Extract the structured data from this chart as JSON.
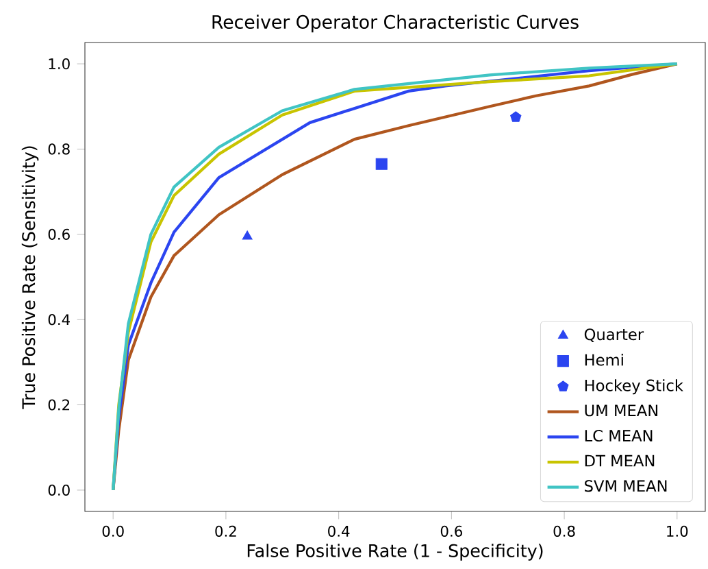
{
  "chart_data": {
    "type": "line",
    "title": "Receiver Operator Characteristic Curves",
    "xlabel": "False Positive Rate (1 - Specificity)",
    "ylabel": "True Positive Rate (Sensitivity)",
    "xlim": [
      -0.05,
      1.05
    ],
    "ylim": [
      -0.05,
      1.05
    ],
    "xticks": [
      {
        "value": 0,
        "label": "0.0"
      },
      0.2,
      0.4,
      0.6,
      0.8,
      {
        "value": 1,
        "label": "1.0"
      }
    ],
    "yticks": [
      {
        "value": 0,
        "label": "0.0"
      },
      0.2,
      0.4,
      0.6,
      0.8,
      {
        "value": 1,
        "label": "1.0"
      }
    ],
    "grid": false,
    "legend": "bottom right",
    "series": [
      {
        "name": "Quarter",
        "type": "scatter",
        "marker": "triangle",
        "color": "#2b45f0",
        "x": [
          0.238
        ],
        "values": [
          0.595
        ]
      },
      {
        "name": "Hemi",
        "type": "scatter",
        "marker": "square",
        "color": "#2b45f0",
        "x": [
          0.476
        ],
        "values": [
          0.765
        ]
      },
      {
        "name": "Hockey Stick",
        "type": "scatter",
        "color": "#2b45f0",
        "x": [
          0.714
        ],
        "values": [
          0.875
        ]
      },
      {
        "name": "UM MEAN",
        "color": "#b0561e",
        "x": [
          0.0,
          0.01,
          0.027,
          0.067,
          0.108,
          0.1875,
          0.3,
          0.428,
          0.524,
          0.668,
          0.75,
          0.844,
          0.92,
          1.0
        ],
        "values": [
          0.0,
          0.14,
          0.305,
          0.453,
          0.55,
          0.646,
          0.74,
          0.823,
          0.855,
          0.9,
          0.925,
          0.948,
          0.975,
          1.0
        ]
      },
      {
        "name": "LC MEAN",
        "color": "#2b45f0",
        "x": [
          0.0,
          0.01,
          0.027,
          0.067,
          0.108,
          0.1875,
          0.349,
          0.524,
          0.589,
          0.844,
          1.0
        ],
        "values": [
          0.0,
          0.17,
          0.34,
          0.486,
          0.605,
          0.733,
          0.862,
          0.936,
          0.948,
          0.984,
          1.0
        ]
      },
      {
        "name": "DT MEAN",
        "color": "#c8c400",
        "x": [
          0.0,
          0.01,
          0.027,
          0.067,
          0.108,
          0.1875,
          0.3,
          0.428,
          0.668,
          0.844,
          1.0
        ],
        "values": [
          0.0,
          0.2,
          0.37,
          0.582,
          0.691,
          0.788,
          0.88,
          0.936,
          0.958,
          0.972,
          1.0
        ]
      },
      {
        "name": "SVM MEAN",
        "color": "#40c4c4",
        "x": [
          0.0,
          0.01,
          0.027,
          0.067,
          0.108,
          0.1875,
          0.3,
          0.428,
          0.668,
          0.844,
          1.0
        ],
        "values": [
          0.0,
          0.19,
          0.39,
          0.6,
          0.711,
          0.804,
          0.89,
          0.94,
          0.974,
          0.99,
          1.0
        ]
      }
    ]
  }
}
